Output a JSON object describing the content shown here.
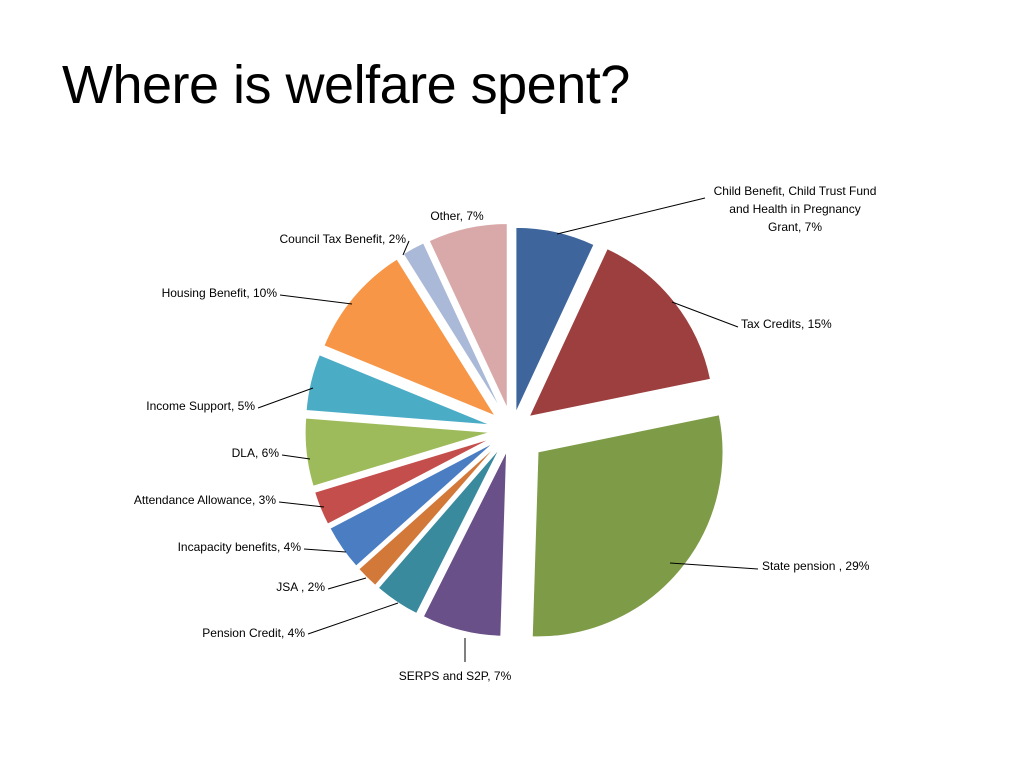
{
  "slide": {
    "title": "Where is welfare spent?"
  },
  "chart_data": {
    "type": "pie",
    "title": "",
    "slices": [
      {
        "label": "Child Benefit, Child Trust Fund and Health in Pregnancy Grant",
        "value": 7,
        "color": "#3E669C"
      },
      {
        "label": "Tax Credits",
        "value": 15,
        "color": "#9C3F3E"
      },
      {
        "label": "State pension ",
        "value": 29,
        "color": "#7E9C47"
      },
      {
        "label": "SERPS and S2P",
        "value": 7,
        "color": "#6A5088"
      },
      {
        "label": "Pension Credit",
        "value": 4,
        "color": "#3A8A9E"
      },
      {
        "label": "JSA ",
        "value": 2,
        "color": "#D2793A"
      },
      {
        "label": "Incapacity benefits",
        "value": 4,
        "color": "#4A7DC2"
      },
      {
        "label": "Attendance Allowance",
        "value": 3,
        "color": "#C44E4C"
      },
      {
        "label": "DLA",
        "value": 6,
        "color": "#9DBB5A"
      },
      {
        "label": "Income Support",
        "value": 5,
        "color": "#4BACC6"
      },
      {
        "label": "Housing Benefit",
        "value": 10,
        "color": "#F79646"
      },
      {
        "label": "Council Tax Benefit",
        "value": 2,
        "color": "#AAB9D7"
      },
      {
        "label": "Other",
        "value": 7,
        "color": "#D9A9A9"
      }
    ],
    "data_labels": [
      {
        "lines": [
          "Child Benefit, Child Trust Fund",
          "and Health in Pregnancy",
          "Grant, 7%"
        ]
      },
      {
        "lines": [
          "Tax Credits, 15%"
        ]
      },
      {
        "lines": [
          "State pension , 29%"
        ]
      },
      {
        "lines": [
          "SERPS and S2P, 7%"
        ]
      },
      {
        "lines": [
          "Pension Credit, 4%"
        ]
      },
      {
        "lines": [
          "JSA , 2%"
        ]
      },
      {
        "lines": [
          "Incapacity benefits, 4%"
        ]
      },
      {
        "lines": [
          "Attendance Allowance, 3%"
        ]
      },
      {
        "lines": [
          "DLA, 6%"
        ]
      },
      {
        "lines": [
          "Income Support, 5%"
        ]
      },
      {
        "lines": [
          "Housing Benefit, 10%"
        ]
      },
      {
        "lines": [
          "Council Tax Benefit, 2%"
        ]
      },
      {
        "lines": [
          "Other, 7%"
        ]
      }
    ],
    "legend": "none",
    "exploded": true
  }
}
